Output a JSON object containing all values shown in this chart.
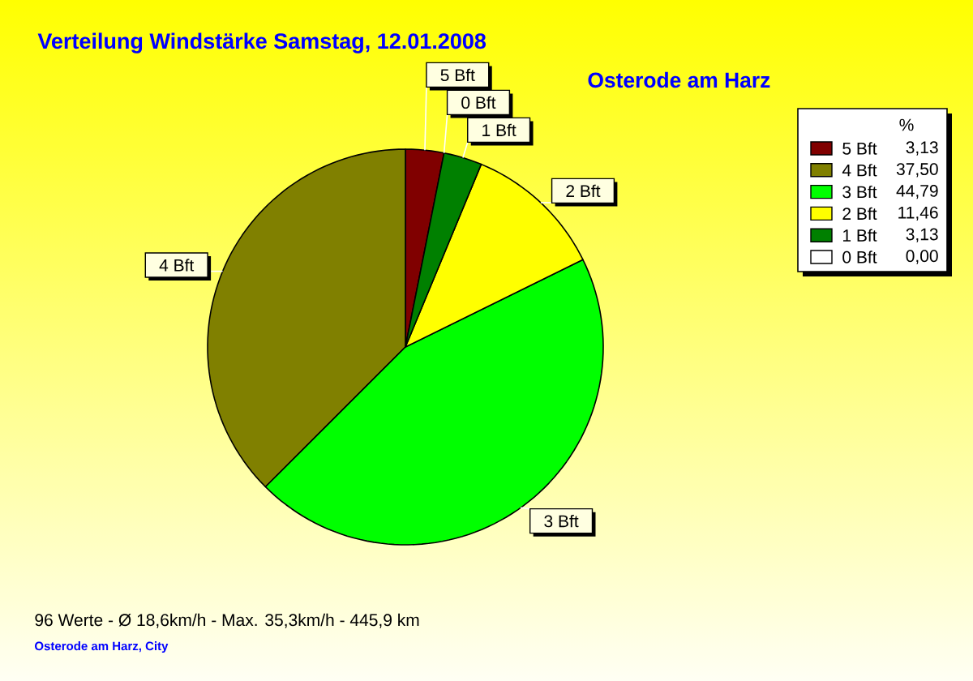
{
  "chart_data": {
    "type": "pie",
    "title": "Verteilung Windstärke Samstag, 12.01.2008",
    "subtitle": "Osterode am Harz",
    "categories": [
      "5 Bft",
      "4 Bft",
      "3 Bft",
      "2 Bft",
      "1 Bft",
      "0 Bft"
    ],
    "values": [
      3.13,
      37.5,
      44.79,
      11.46,
      3.13,
      0
    ],
    "colors": [
      "#800000",
      "#808000",
      "#00ff00",
      "#ffff00",
      "#008000",
      "#ffffff"
    ],
    "value_labels": [
      "3,13",
      "37,50",
      "44,79",
      "11,46",
      "3,13",
      "0,00"
    ],
    "legend": "top right",
    "legend_title": "%",
    "annotations": [
      "96 Werte - Ø 18,6km/h - Max. 35,3km/h - 445,9 km",
      "Osterode am Harz, City"
    ]
  }
}
